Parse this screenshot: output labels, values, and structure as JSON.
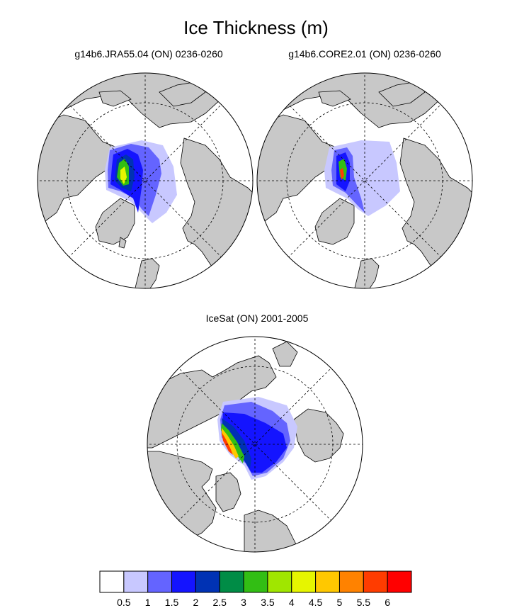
{
  "title": "Ice Thickness (m)",
  "panels": [
    {
      "id": "left",
      "title": "g14b6.JRA55.04 (ON) 0236-0260"
    },
    {
      "id": "right",
      "title": "g14b6.CORE2.01 (ON) 0236-0260"
    },
    {
      "id": "bottom",
      "title": "IceSat (ON) 2001-2005"
    }
  ],
  "colorbar": {
    "labels": [
      "0.5",
      "1",
      "1.5",
      "2",
      "2.5",
      "3",
      "3.5",
      "4",
      "4.5",
      "5",
      "5.5",
      "6"
    ],
    "colors": [
      "#ffffff",
      "#c8c8ff",
      "#6464ff",
      "#1414ff",
      "#0032b4",
      "#008c46",
      "#32be14",
      "#a0e600",
      "#e6f500",
      "#ffc800",
      "#ff8200",
      "#ff3c00",
      "#ff0000"
    ]
  },
  "map_colors": {
    "land": "#c8c8c8",
    "ocean": "#ffffff",
    "outline": "#000000"
  }
}
